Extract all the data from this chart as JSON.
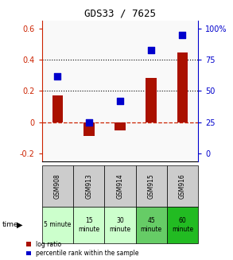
{
  "title": "GDS33 / 7625",
  "samples": [
    "GSM908",
    "GSM913",
    "GSM914",
    "GSM915",
    "GSM916"
  ],
  "time_labels_row1": [
    "5 minute",
    "15",
    "30",
    "45",
    "60"
  ],
  "time_labels_row2": [
    "",
    "minute",
    "minute",
    "minute",
    "minute"
  ],
  "time_colors": [
    "#ccffcc",
    "#ccffcc",
    "#ccffcc",
    "#66cc66",
    "#22bb22"
  ],
  "log_ratio": [
    0.17,
    -0.09,
    -0.05,
    0.285,
    0.445
  ],
  "percentile_rank_pct": [
    62,
    25,
    42,
    83,
    95
  ],
  "bar_color": "#aa1100",
  "dot_color": "#0000cc",
  "ylim_left": [
    -0.25,
    0.65
  ],
  "ylim_right": [
    -6.25,
    106.25
  ],
  "yticks_left": [
    -0.2,
    0.0,
    0.2,
    0.4,
    0.6
  ],
  "ytick_labels_left": [
    "-0.2",
    "0",
    "0.2",
    "0.4",
    "0.6"
  ],
  "yticks_right": [
    0,
    25,
    50,
    75,
    100
  ],
  "ytick_labels_right": [
    "0",
    "25",
    "50",
    "75",
    "100%"
  ],
  "hline_y": [
    0.2,
    0.4
  ],
  "sample_header_color": "#cccccc",
  "bar_width": 0.35,
  "dot_size": 40
}
